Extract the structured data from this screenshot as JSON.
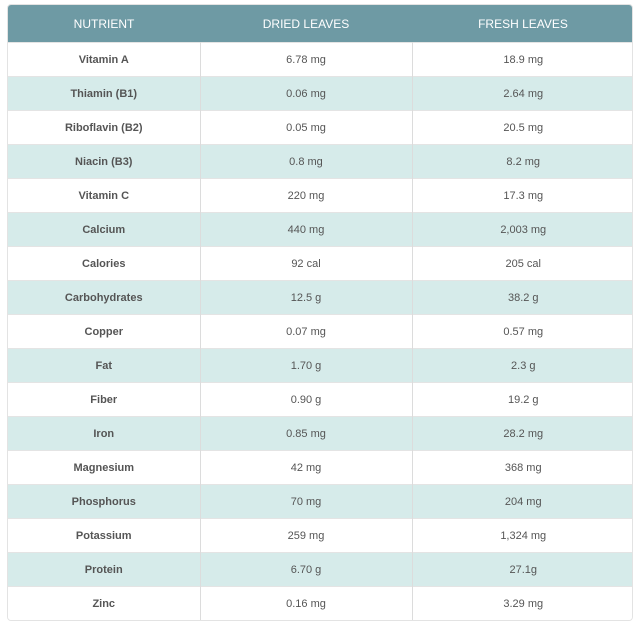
{
  "table": {
    "header": [
      "NUTRIENT",
      "DRIED LEAVES",
      "FRESH LEAVES"
    ],
    "rows": [
      [
        "Vitamin A",
        "6.78 mg",
        "18.9 mg"
      ],
      [
        "Thiamin (B1)",
        "0.06 mg",
        "2.64 mg"
      ],
      [
        "Riboflavin (B2)",
        "0.05 mg",
        "20.5 mg"
      ],
      [
        "Niacin (B3)",
        "0.8 mg",
        "8.2 mg"
      ],
      [
        "Vitamin C",
        "220 mg",
        "17.3 mg"
      ],
      [
        "Calcium",
        "440 mg",
        "2,003 mg"
      ],
      [
        "Calories",
        "92 cal",
        "205 cal"
      ],
      [
        "Carbohydrates",
        "12.5 g",
        "38.2 g"
      ],
      [
        "Copper",
        "0.07 mg",
        "0.57 mg"
      ],
      [
        "Fat",
        "1.70 g",
        "2.3 g"
      ],
      [
        "Fiber",
        "0.90 g",
        "19.2 g"
      ],
      [
        "Iron",
        "0.85 mg",
        "28.2 mg"
      ],
      [
        "Magnesium",
        "42 mg",
        "368 mg"
      ],
      [
        "Phosphorus",
        "70 mg",
        "204 mg"
      ],
      [
        "Potassium",
        "259 mg",
        "1,324 mg"
      ],
      [
        "Protein",
        "6.70 g",
        "27.1g"
      ],
      [
        "Zinc",
        "0.16 mg",
        "3.29 mg"
      ]
    ]
  }
}
